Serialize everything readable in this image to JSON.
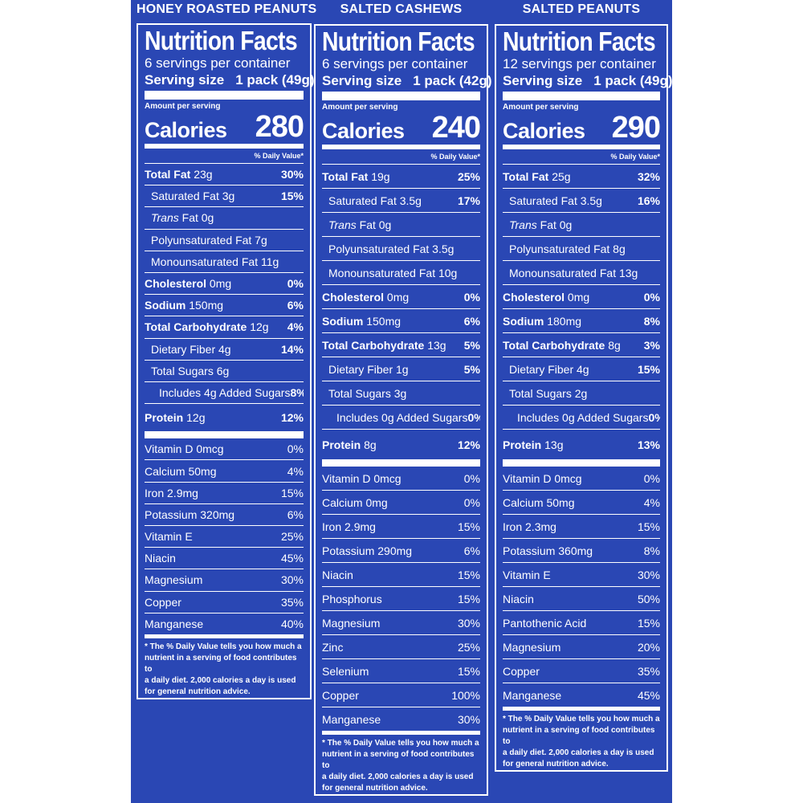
{
  "columns": [
    {
      "product": "HONEY ROASTED PEANUTS",
      "title": "Nutrition Facts",
      "servings_per_container": "6 servings per container",
      "serving_size_label": "Serving size",
      "serving_size_value": "1 pack (49g)",
      "amount_per_serving": "Amount per serving",
      "calories_label": "Calories",
      "calories": "280",
      "dv_header": "% Daily Value*",
      "nutrients": [
        {
          "name": "Total Fat",
          "amount": "23g",
          "pct": "30%"
        },
        {
          "name": "Saturated Fat",
          "amount": "3g",
          "pct": "15%"
        },
        {
          "name": "Trans",
          "amount": "Fat 0g",
          "pct": ""
        },
        {
          "name": "",
          "amount": "Polyunsaturated Fat 7g",
          "pct": ""
        },
        {
          "name": "",
          "amount": "Monounsaturated Fat 11g",
          "pct": ""
        },
        {
          "name": "Cholesterol",
          "amount": "0mg",
          "pct": "0%"
        },
        {
          "name": "Sodium",
          "amount": "150mg",
          "pct": "6%"
        },
        {
          "name": "Total Carbohydrate",
          "amount": "12g",
          "pct": "4%"
        },
        {
          "name": "",
          "amount": "Dietary Fiber 4g",
          "pct": "14%"
        },
        {
          "name": "",
          "amount": "Total Sugars 6g",
          "pct": ""
        },
        {
          "name": "",
          "amount": "Includes 4g Added Sugars",
          "pct": "8%"
        },
        {
          "name": "Protein",
          "amount": "12g",
          "pct": "12%"
        }
      ],
      "minerals": [
        {
          "name": "Vitamin D 0mcg",
          "pct": "0%"
        },
        {
          "name": "Calcium 50mg",
          "pct": "4%"
        },
        {
          "name": "Iron 2.9mg",
          "pct": "15%"
        },
        {
          "name": "Potassium 320mg",
          "pct": "6%"
        },
        {
          "name": "Vitamin E",
          "pct": "25%"
        },
        {
          "name": "Niacin",
          "pct": "45%"
        },
        {
          "name": "Magnesium",
          "pct": "30%"
        },
        {
          "name": "Copper",
          "pct": "35%"
        },
        {
          "name": "Manganese",
          "pct": "40%"
        }
      ],
      "footnote": [
        "* The % Daily Value tells you how much a",
        "nutrient in a serving of food contributes to",
        "a daily diet. 2,000 calories a day is used",
        "for general nutrition advice."
      ]
    },
    {
      "product": "SALTED CASHEWS",
      "title": "Nutrition Facts",
      "servings_per_container": "6 servings per container",
      "serving_size_label": "Serving size",
      "serving_size_value": "1 pack (42g)",
      "amount_per_serving": "Amount per serving",
      "calories_label": "Calories",
      "calories": "240",
      "dv_header": "% Daily Value*",
      "nutrients": [
        {
          "name": "Total Fat",
          "amount": "19g",
          "pct": "25%"
        },
        {
          "name": "Saturated Fat",
          "amount": "3.5g",
          "pct": "17%"
        },
        {
          "name": "Trans",
          "amount": "Fat 0g",
          "pct": ""
        },
        {
          "name": "",
          "amount": "Polyunsaturated Fat 3.5g",
          "pct": ""
        },
        {
          "name": "",
          "amount": "Monounsaturated Fat 10g",
          "pct": ""
        },
        {
          "name": "Cholesterol",
          "amount": "0mg",
          "pct": "0%"
        },
        {
          "name": "Sodium",
          "amount": "150mg",
          "pct": "6%"
        },
        {
          "name": "Total Carbohydrate",
          "amount": "13g",
          "pct": "5%"
        },
        {
          "name": "",
          "amount": "Dietary Fiber 1g",
          "pct": "5%"
        },
        {
          "name": "",
          "amount": "Total Sugars 3g",
          "pct": ""
        },
        {
          "name": "",
          "amount": "Includes 0g Added Sugars",
          "pct": "0%"
        },
        {
          "name": "Protein",
          "amount": "8g",
          "pct": "12%"
        }
      ],
      "minerals": [
        {
          "name": "Vitamin D 0mcg",
          "pct": "0%"
        },
        {
          "name": "Calcium 0mg",
          "pct": "0%"
        },
        {
          "name": "Iron 2.9mg",
          "pct": "15%"
        },
        {
          "name": "Potassium 290mg",
          "pct": "6%"
        },
        {
          "name": "Niacin",
          "pct": "15%"
        },
        {
          "name": "Phosphorus",
          "pct": "15%"
        },
        {
          "name": "Magnesium",
          "pct": "30%"
        },
        {
          "name": "Zinc",
          "pct": "25%"
        },
        {
          "name": "Selenium",
          "pct": "15%"
        },
        {
          "name": "Copper",
          "pct": "100%"
        },
        {
          "name": "Manganese",
          "pct": "30%"
        }
      ],
      "footnote": [
        "* The % Daily Value tells you how much a",
        "nutrient in a serving of food contributes to",
        "a daily diet. 2,000 calories a day is used",
        "for general nutrition advice."
      ]
    },
    {
      "product": "SALTED PEANUTS",
      "title": "Nutrition Facts",
      "servings_per_container": "12 servings per container",
      "serving_size_label": "Serving size",
      "serving_size_value": "1 pack (49g)",
      "amount_per_serving": "Amount per serving",
      "calories_label": "Calories",
      "calories": "290",
      "dv_header": "% Daily Value*",
      "nutrients": [
        {
          "name": "Total Fat",
          "amount": "25g",
          "pct": "32%"
        },
        {
          "name": "Saturated Fat",
          "amount": "3.5g",
          "pct": "16%"
        },
        {
          "name": "Trans",
          "amount": "Fat 0g",
          "pct": ""
        },
        {
          "name": "",
          "amount": "Polyunsaturated Fat 8g",
          "pct": ""
        },
        {
          "name": "",
          "amount": "Monounsaturated Fat 13g",
          "pct": ""
        },
        {
          "name": "Cholesterol",
          "amount": "0mg",
          "pct": "0%"
        },
        {
          "name": "Sodium",
          "amount": "180mg",
          "pct": "8%"
        },
        {
          "name": "Total Carbohydrate",
          "amount": "8g",
          "pct": "3%"
        },
        {
          "name": "",
          "amount": "Dietary Fiber 4g",
          "pct": "15%"
        },
        {
          "name": "",
          "amount": "Total Sugars 2g",
          "pct": ""
        },
        {
          "name": "",
          "amount": "Includes 0g Added Sugars",
          "pct": "0%"
        },
        {
          "name": "Protein",
          "amount": "13g",
          "pct": "13%"
        }
      ],
      "minerals": [
        {
          "name": "Vitamin D 0mcg",
          "pct": "0%"
        },
        {
          "name": "Calcium 50mg",
          "pct": "4%"
        },
        {
          "name": "Iron 2.3mg",
          "pct": "15%"
        },
        {
          "name": "Potassium 360mg",
          "pct": "8%"
        },
        {
          "name": "Vitamin E",
          "pct": "30%"
        },
        {
          "name": "Niacin",
          "pct": "50%"
        },
        {
          "name": "Pantothenic Acid",
          "pct": "15%"
        },
        {
          "name": "Magnesium",
          "pct": "20%"
        },
        {
          "name": "Copper",
          "pct": "35%"
        },
        {
          "name": "Manganese",
          "pct": "45%"
        }
      ],
      "footnote": [
        "* The % Daily Value tells you how much a",
        "nutrient in a serving of food contributes to",
        "a daily diet. 2,000 calories a day is used",
        "for general nutrition advice."
      ]
    }
  ]
}
